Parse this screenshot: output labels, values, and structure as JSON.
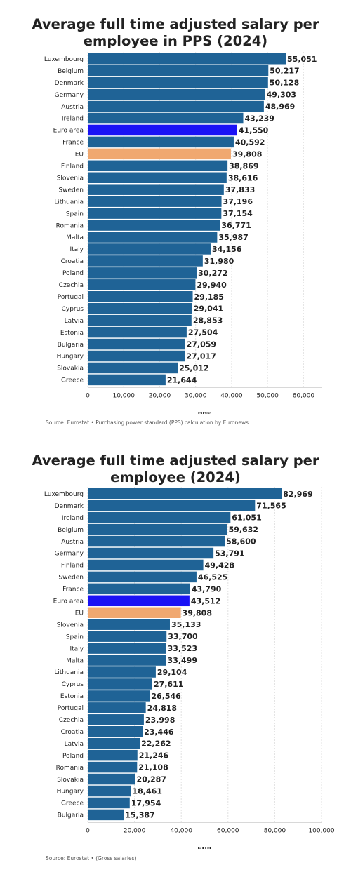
{
  "chart_data": [
    {
      "type": "bar",
      "orientation": "horizontal",
      "title": "Average full time adjusted salary per employee in PPS (2024)",
      "title_lines": [
        "Average full time adjusted salary per",
        "employee in PPS (2024)"
      ],
      "xlabel": "PPS",
      "ylabel": "",
      "xlim": [
        0,
        65000
      ],
      "ticks": [
        0,
        10000,
        20000,
        30000,
        40000,
        50000,
        60000
      ],
      "tick_labels": [
        "0",
        "10,000",
        "20,000",
        "30,000",
        "40,000",
        "50,000",
        "60,000"
      ],
      "grid": true,
      "source": "Source: Eurostat • Purchasing power standard (PPS) calculation by Euronews.",
      "categories": [
        "Luxembourg",
        "Belgium",
        "Denmark",
        "Germany",
        "Austria",
        "Ireland",
        "Euro area",
        "France",
        "EU",
        "Finland",
        "Slovenia",
        "Sweden",
        "Lithuania",
        "Spain",
        "Romania",
        "Malta",
        "Italy",
        "Croatia",
        "Poland",
        "Czechia",
        "Portugal",
        "Cyprus",
        "Latvia",
        "Estonia",
        "Bulgaria",
        "Hungary",
        "Slovakia",
        "Greece"
      ],
      "values": [
        55051,
        50217,
        50128,
        49303,
        48969,
        43239,
        41550,
        40592,
        39808,
        38869,
        38616,
        37833,
        37196,
        37154,
        36771,
        35987,
        34156,
        31980,
        30272,
        29940,
        29185,
        29041,
        28853,
        27504,
        27059,
        27017,
        25012,
        21644
      ],
      "value_labels": [
        "55,051",
        "50,217",
        "50,128",
        "49,303",
        "48,969",
        "43,239",
        "41,550",
        "40,592",
        "39,808",
        "38,869",
        "38,616",
        "37,833",
        "37,196",
        "37,154",
        "36,771",
        "35,987",
        "34,156",
        "31,980",
        "30,272",
        "29,940",
        "29,185",
        "29,041",
        "28,853",
        "27,504",
        "27,059",
        "27,017",
        "25,012",
        "21,644"
      ],
      "colors": {
        "default": "#1f6396",
        "Euro area": "#1a12f5",
        "EU": "#f0a870"
      }
    },
    {
      "type": "bar",
      "orientation": "horizontal",
      "title": "Average full time adjusted salary per employee (2024)",
      "title_lines": [
        "Average full time adjusted salary per",
        "employee (2024)"
      ],
      "xlabel": "EUR",
      "ylabel": "",
      "xlim": [
        0,
        100000
      ],
      "ticks": [
        0,
        20000,
        40000,
        60000,
        80000,
        100000
      ],
      "tick_labels": [
        "0",
        "20,000",
        "40,000",
        "60,000",
        "80,000",
        "100,000"
      ],
      "grid": true,
      "source": "Source: Eurostat • (Gross salaries)",
      "categories": [
        "Luxembourg",
        "Denmark",
        "Ireland",
        "Belgium",
        "Austria",
        "Germany",
        "Finland",
        "Sweden",
        "France",
        "Euro area",
        "EU",
        "Slovenia",
        "Spain",
        "Italy",
        "Malta",
        "Lithuania",
        "Cyprus",
        "Estonia",
        "Portugal",
        "Czechia",
        "Croatia",
        "Latvia",
        "Poland",
        "Romania",
        "Slovakia",
        "Hungary",
        "Greece",
        "Bulgaria"
      ],
      "values": [
        82969,
        71565,
        61051,
        59632,
        58600,
        53791,
        49428,
        46525,
        43790,
        43512,
        39808,
        35133,
        33700,
        33523,
        33499,
        29104,
        27611,
        26546,
        24818,
        23998,
        23446,
        22262,
        21246,
        21108,
        20287,
        18461,
        17954,
        15387
      ],
      "value_labels": [
        "82,969",
        "71,565",
        "61,051",
        "59,632",
        "58,600",
        "53,791",
        "49,428",
        "46,525",
        "43,790",
        "43,512",
        "39,808",
        "35,133",
        "33,700",
        "33,523",
        "33,499",
        "29,104",
        "27,611",
        "26,546",
        "24,818",
        "23,998",
        "23,446",
        "22,262",
        "21,246",
        "21,108",
        "20,287",
        "18,461",
        "17,954",
        "15,387"
      ],
      "colors": {
        "default": "#1f6396",
        "Euro area": "#1a12f5",
        "EU": "#f0a870"
      }
    }
  ]
}
